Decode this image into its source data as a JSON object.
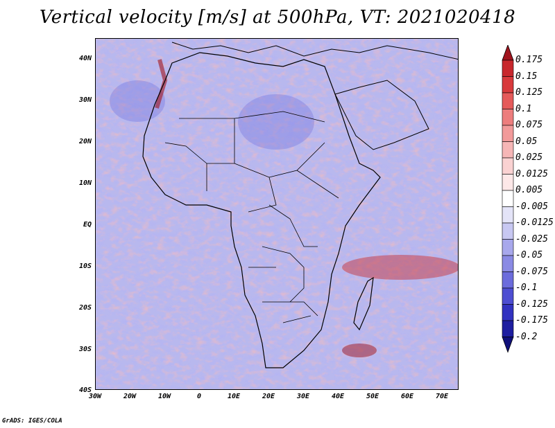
{
  "title": "Vertical velocity [m/s] at 500hPa, VT: 2021020418",
  "credit": "GrADS: IGES/COLA",
  "lat_labels": [
    "40N",
    "30N",
    "20N",
    "10N",
    "EQ",
    "10S",
    "20S",
    "30S",
    "40S"
  ],
  "lon_labels": [
    "30W",
    "20W",
    "10W",
    "0",
    "10E",
    "20E",
    "30E",
    "40E",
    "50E",
    "60E",
    "70E"
  ],
  "colorbar": {
    "levels": [
      "0.175",
      "0.15",
      "0.125",
      "0.1",
      "0.075",
      "0.05",
      "0.025",
      "0.0125",
      "0.005",
      "-0.005",
      "-0.0125",
      "-0.025",
      "-0.05",
      "-0.075",
      "-0.1",
      "-0.125",
      "-0.175",
      "-0.2"
    ],
    "colors": [
      "#a0141e",
      "#c8282d",
      "#d83a3c",
      "#e55a5a",
      "#ed7d7d",
      "#f29a9a",
      "#f6b6b6",
      "#fad2d2",
      "#fde8e8",
      "#ffffff",
      "#e4e4f8",
      "#c8c8f2",
      "#a8a8ec",
      "#8a8ae4",
      "#6c6cdc",
      "#4e4ed2",
      "#3232c0",
      "#1e1ea0",
      "#10107a"
    ]
  }
}
